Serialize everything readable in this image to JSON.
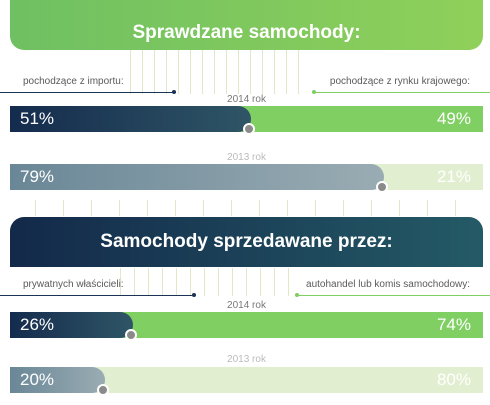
{
  "chart_data": [
    {
      "type": "bar",
      "title": "Sprawdzane samochody:",
      "left_category": "pochodzące z importu:",
      "right_category": "pochodzące z rynku krajowego:",
      "years": [
        {
          "label": "2014 rok",
          "left": 51,
          "right": 49,
          "left_label": "51%",
          "right_label": "49%"
        },
        {
          "label": "2013 rok",
          "left": 79,
          "right": 21,
          "left_label": "79%",
          "right_label": "21%"
        }
      ]
    },
    {
      "type": "bar",
      "title": "Samochody sprzedawane przez:",
      "left_category": "prywatnych właścicieli:",
      "right_category": "autohandel lub komis samochodowy:",
      "years": [
        {
          "label": "2014 rok",
          "left": 26,
          "right": 74,
          "left_label": "26%",
          "right_label": "74%"
        },
        {
          "label": "2013 rok",
          "left": 20,
          "right": 80,
          "left_label": "20%",
          "right_label": "80%"
        }
      ]
    }
  ],
  "colors": {
    "green_banner_left": "#6fc062",
    "green_banner_right": "#8fd05a",
    "navy_banner_left": "#13294a",
    "navy_banner_right": "#245a66",
    "bar_2014_left": "#142b4d",
    "bar_2014_right": "#7fcf62",
    "bar_2013_left": "#6a8797",
    "bar_2013_right": "#e2eed0",
    "knob": "#8a8a8a"
  }
}
